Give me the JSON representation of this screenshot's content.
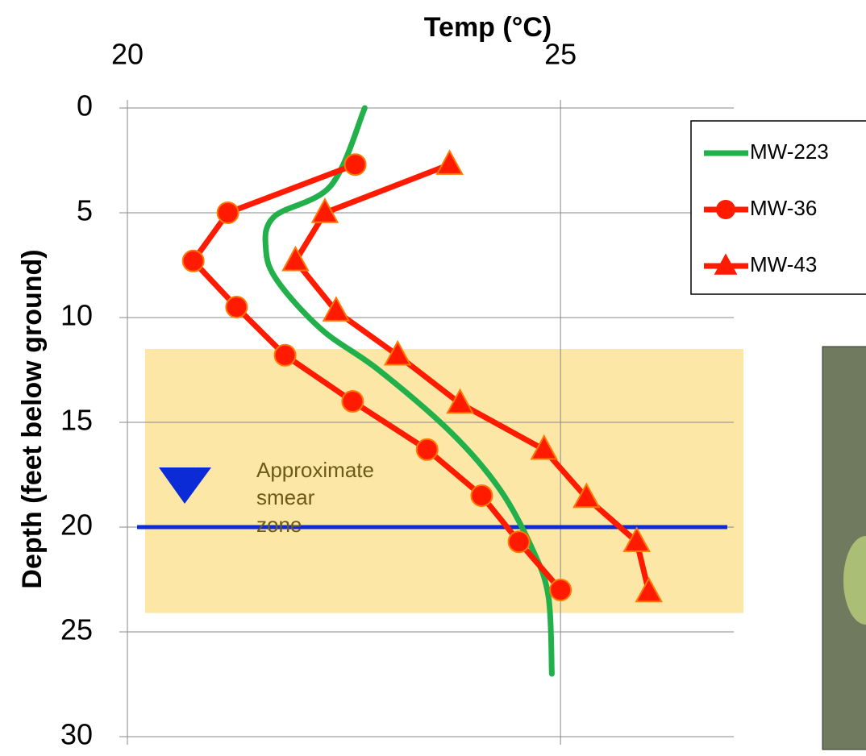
{
  "chart_data": {
    "type": "line",
    "title": "Temp (°C)",
    "y_label": "Depth (feet below ground)",
    "xlim": [
      20,
      27
    ],
    "xticks": [
      20,
      25
    ],
    "ylim": [
      0,
      30
    ],
    "yticks": [
      0,
      5,
      10,
      15,
      20,
      25,
      30
    ],
    "y_inverted": true,
    "grid": true,
    "legend": "top-right",
    "annotation": "Approximate smear zone",
    "smear_zone": [
      11.5,
      24.1
    ],
    "water_table": 20,
    "series": [
      {
        "name": "MW-223",
        "color": "#22b04b",
        "marker": "none",
        "smooth": true,
        "x": [
          22.74,
          22.35,
          21.69,
          21.6,
          21.74,
          22.25,
          22.9,
          23.74,
          24.3,
          24.67,
          24.86,
          24.9
        ],
        "values": [
          0,
          3.7,
          5.2,
          6.8,
          8.3,
          10.6,
          12.5,
          15.5,
          18.2,
          21,
          23.3,
          27
        ]
      },
      {
        "name": "MW-36",
        "color": "#ff1a00",
        "marker": "circle",
        "x": [
          22.63,
          21.16,
          20.76,
          21.26,
          21.82,
          22.6,
          23.46,
          24.09,
          24.52,
          25.0
        ],
        "values": [
          2.7,
          5.0,
          7.3,
          9.5,
          11.8,
          14.0,
          16.3,
          18.5,
          20.7,
          23.0
        ]
      },
      {
        "name": "MW-43",
        "color": "#ff1a00",
        "marker": "triangle",
        "x": [
          23.72,
          22.28,
          21.94,
          22.41,
          23.12,
          23.84,
          24.81,
          25.3,
          25.88,
          26.02
        ],
        "values": [
          2.7,
          5.0,
          7.3,
          9.7,
          11.8,
          14.1,
          16.3,
          18.6,
          20.7,
          23.1
        ]
      }
    ]
  }
}
